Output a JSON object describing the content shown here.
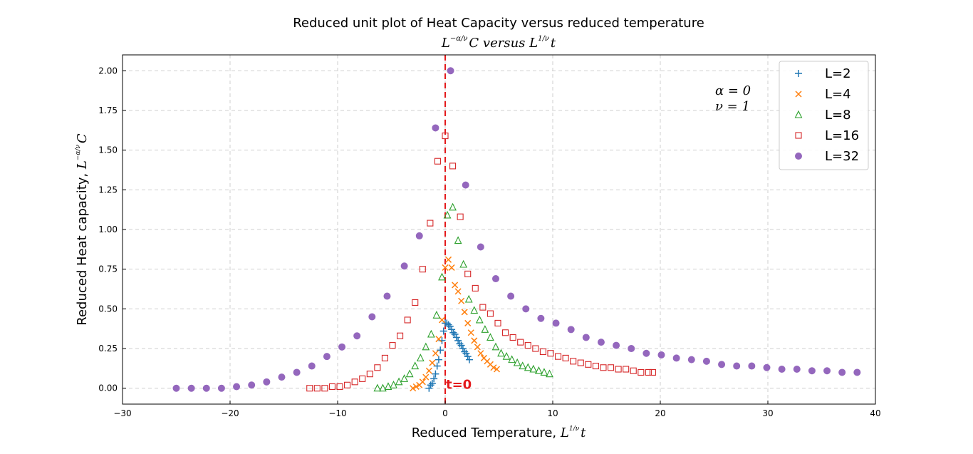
{
  "chart_data": {
    "type": "scatter",
    "title": "Reduced unit plot of Heat Capacity versus reduced temperature",
    "subtitle": {
      "pre": "L",
      "exp": "−α/ν",
      "mid": "C  versus  ",
      "pre2": "L",
      "exp2": "1/ν",
      "post": "t"
    },
    "xlabel": {
      "text": "Reduced Temperature,  ",
      "var": "L",
      "exp": "1/ν",
      "post": "t"
    },
    "ylabel": {
      "text": "Reduced Heat capacity,  ",
      "var": "L",
      "exp": "−α/ν",
      "post": "C"
    },
    "xlim": [
      -30,
      40
    ],
    "ylim": [
      -0.1,
      2.1
    ],
    "x_ticks": [
      -30,
      -20,
      -10,
      0,
      10,
      20,
      30,
      40
    ],
    "x_tick_labels": [
      "−30",
      "−20",
      "−10",
      "0",
      "10",
      "20",
      "30",
      "40"
    ],
    "y_ticks": [
      0.0,
      0.25,
      0.5,
      0.75,
      1.0,
      1.25,
      1.5,
      1.75,
      2.0
    ],
    "y_tick_labels": [
      "0.00",
      "0.25",
      "0.50",
      "0.75",
      "1.00",
      "1.25",
      "1.50",
      "1.75",
      "2.00"
    ],
    "grid": true,
    "legend_position": "top-right",
    "annotations": {
      "params": [
        "α = 0",
        "ν = 1"
      ],
      "vline_x": 0,
      "vline_label": "t=0",
      "vline_color": "#e41a1c"
    },
    "series": [
      {
        "name": "L=2",
        "marker": "plus",
        "color": "#1f77b4",
        "x": [
          -1.5,
          -1.35,
          -1.2,
          -1.05,
          -0.9,
          -0.75,
          -0.6,
          -0.45,
          -0.3,
          -0.15,
          0.0,
          0.15,
          0.3,
          0.45,
          0.6,
          0.75,
          0.9,
          1.05,
          1.2,
          1.35,
          1.5,
          1.65,
          1.8,
          1.95,
          2.1,
          2.25
        ],
        "y": [
          0.0,
          0.02,
          0.03,
          0.06,
          0.09,
          0.14,
          0.18,
          0.24,
          0.3,
          0.36,
          0.41,
          0.41,
          0.4,
          0.39,
          0.37,
          0.35,
          0.34,
          0.32,
          0.3,
          0.28,
          0.27,
          0.25,
          0.23,
          0.22,
          0.2,
          0.18
        ]
      },
      {
        "name": "L=4",
        "marker": "x",
        "color": "#ff7f0e",
        "x": [
          -3.0,
          -2.7,
          -2.4,
          -2.1,
          -1.8,
          -1.5,
          -1.2,
          -0.9,
          -0.6,
          -0.3,
          0.0,
          0.3,
          0.6,
          0.9,
          1.2,
          1.5,
          1.8,
          2.1,
          2.4,
          2.7,
          3.0,
          3.3,
          3.6,
          3.9,
          4.2,
          4.5,
          4.8
        ],
        "y": [
          0.0,
          0.01,
          0.02,
          0.04,
          0.07,
          0.11,
          0.16,
          0.22,
          0.31,
          0.43,
          0.76,
          0.81,
          0.76,
          0.65,
          0.61,
          0.55,
          0.48,
          0.41,
          0.35,
          0.3,
          0.26,
          0.22,
          0.19,
          0.17,
          0.15,
          0.13,
          0.12
        ]
      },
      {
        "name": "L=8",
        "marker": "triangle",
        "color": "#2ca02c",
        "x": [
          -6.3,
          -5.8,
          -5.3,
          -4.8,
          -4.3,
          -3.8,
          -3.3,
          -2.8,
          -2.3,
          -1.8,
          -1.3,
          -0.8,
          -0.3,
          0.2,
          0.7,
          1.2,
          1.7,
          2.2,
          2.7,
          3.2,
          3.7,
          4.2,
          4.7,
          5.2,
          5.7,
          6.2,
          6.7,
          7.2,
          7.7,
          8.2,
          8.7,
          9.2,
          9.7
        ],
        "y": [
          0.0,
          0.0,
          0.01,
          0.02,
          0.04,
          0.06,
          0.09,
          0.14,
          0.19,
          0.26,
          0.34,
          0.46,
          0.7,
          1.09,
          1.14,
          0.93,
          0.78,
          0.56,
          0.49,
          0.43,
          0.37,
          0.32,
          0.26,
          0.22,
          0.2,
          0.18,
          0.16,
          0.14,
          0.13,
          0.12,
          0.11,
          0.1,
          0.09
        ]
      },
      {
        "name": "L=16",
        "marker": "square",
        "color": "#d62728",
        "x": [
          -12.6,
          -11.9,
          -11.2,
          -10.5,
          -9.8,
          -9.1,
          -8.4,
          -7.7,
          -7.0,
          -6.3,
          -5.6,
          -4.9,
          -4.2,
          -3.5,
          -2.8,
          -2.1,
          -1.4,
          -0.7,
          0.0,
          0.7,
          1.4,
          2.1,
          2.8,
          3.5,
          4.2,
          4.9,
          5.6,
          6.3,
          7.0,
          7.7,
          8.4,
          9.1,
          9.8,
          10.5,
          11.2,
          11.9,
          12.6,
          13.3,
          14.0,
          14.7,
          15.4,
          16.1,
          16.8,
          17.5,
          18.2,
          18.9,
          19.3
        ],
        "y": [
          0.0,
          0.0,
          0.0,
          0.01,
          0.01,
          0.02,
          0.04,
          0.06,
          0.09,
          0.13,
          0.19,
          0.27,
          0.33,
          0.43,
          0.54,
          0.75,
          1.04,
          1.43,
          1.59,
          1.4,
          1.08,
          0.72,
          0.63,
          0.51,
          0.47,
          0.41,
          0.35,
          0.32,
          0.29,
          0.27,
          0.25,
          0.23,
          0.22,
          0.2,
          0.19,
          0.17,
          0.16,
          0.15,
          0.14,
          0.13,
          0.13,
          0.12,
          0.12,
          0.11,
          0.1,
          0.1,
          0.1
        ]
      },
      {
        "name": "L=32",
        "marker": "circle",
        "color": "#9467bd",
        "x": [
          -25.0,
          -23.6,
          -22.2,
          -20.8,
          -19.4,
          -18.0,
          -16.6,
          -15.2,
          -13.8,
          -12.4,
          -11.0,
          -9.6,
          -8.2,
          -6.8,
          -5.4,
          -3.8,
          -2.4,
          -0.9,
          0.5,
          1.9,
          3.3,
          4.7,
          6.1,
          7.5,
          8.9,
          10.3,
          11.7,
          13.1,
          14.5,
          15.9,
          17.3,
          18.7,
          20.1,
          21.5,
          22.9,
          24.3,
          25.7,
          27.1,
          28.5,
          29.9,
          31.3,
          32.7,
          34.1,
          35.5,
          36.9,
          38.3
        ],
        "y": [
          0.0,
          0.0,
          0.0,
          0.0,
          0.01,
          0.02,
          0.04,
          0.07,
          0.1,
          0.14,
          0.2,
          0.26,
          0.33,
          0.45,
          0.58,
          0.77,
          0.96,
          1.64,
          2.0,
          1.28,
          0.89,
          0.69,
          0.58,
          0.5,
          0.44,
          0.41,
          0.37,
          0.32,
          0.29,
          0.27,
          0.25,
          0.22,
          0.21,
          0.19,
          0.18,
          0.17,
          0.15,
          0.14,
          0.14,
          0.13,
          0.12,
          0.12,
          0.11,
          0.11,
          0.1,
          0.1
        ]
      }
    ]
  }
}
